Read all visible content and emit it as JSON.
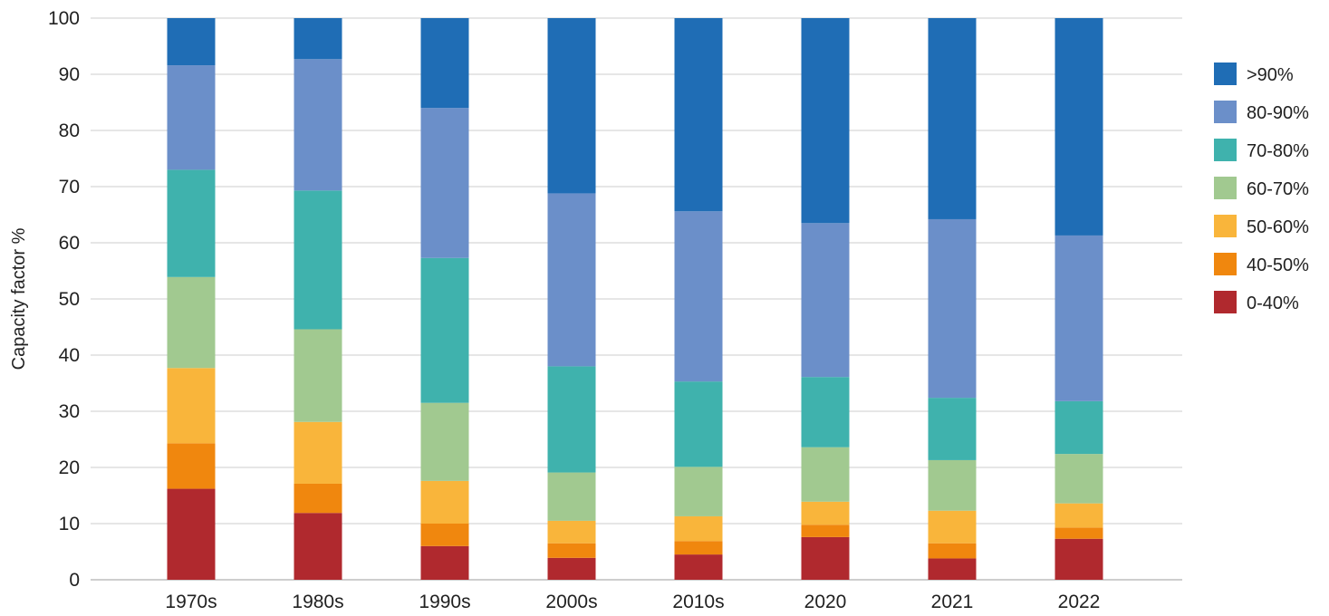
{
  "chart_data": {
    "type": "bar",
    "stacked": true,
    "categories": [
      "1970s",
      "1980s",
      "1990s",
      "2000s",
      "2010s",
      "2020",
      "2021",
      "2022"
    ],
    "ylabel": "Capacity factor %",
    "xlabel": "",
    "ylim": [
      0,
      100
    ],
    "yticks": [
      0,
      10,
      20,
      30,
      40,
      50,
      60,
      70,
      80,
      90,
      100
    ],
    "grid": true,
    "legend_position": "right",
    "series": [
      {
        "name": "0-40%",
        "color": "#b0292e",
        "values": [
          16.2,
          11.9,
          6.0,
          3.9,
          4.5,
          7.6,
          3.8,
          7.3
        ]
      },
      {
        "name": "40-50%",
        "color": "#f0870e",
        "values": [
          8.1,
          5.2,
          4.0,
          2.6,
          2.4,
          2.2,
          2.7,
          2.0
        ]
      },
      {
        "name": "50-60%",
        "color": "#f9b53b",
        "values": [
          13.4,
          11.0,
          7.6,
          4.0,
          4.4,
          4.1,
          5.8,
          4.3
        ]
      },
      {
        "name": "60-70%",
        "color": "#a1c990",
        "values": [
          16.2,
          16.5,
          13.9,
          8.6,
          8.8,
          9.7,
          9.0,
          8.8
        ]
      },
      {
        "name": "70-80%",
        "color": "#3fb2ad",
        "values": [
          19.1,
          24.7,
          25.8,
          18.9,
          15.2,
          12.5,
          11.1,
          9.4
        ]
      },
      {
        "name": "80-90%",
        "color": "#6b8fc9",
        "values": [
          18.6,
          23.4,
          26.7,
          30.8,
          30.3,
          27.4,
          31.8,
          29.5
        ]
      },
      {
        "name": ">90%",
        "color": "#1f6db5",
        "values": [
          8.4,
          7.3,
          16.0,
          31.2,
          34.4,
          36.5,
          35.8,
          38.7
        ]
      }
    ]
  }
}
